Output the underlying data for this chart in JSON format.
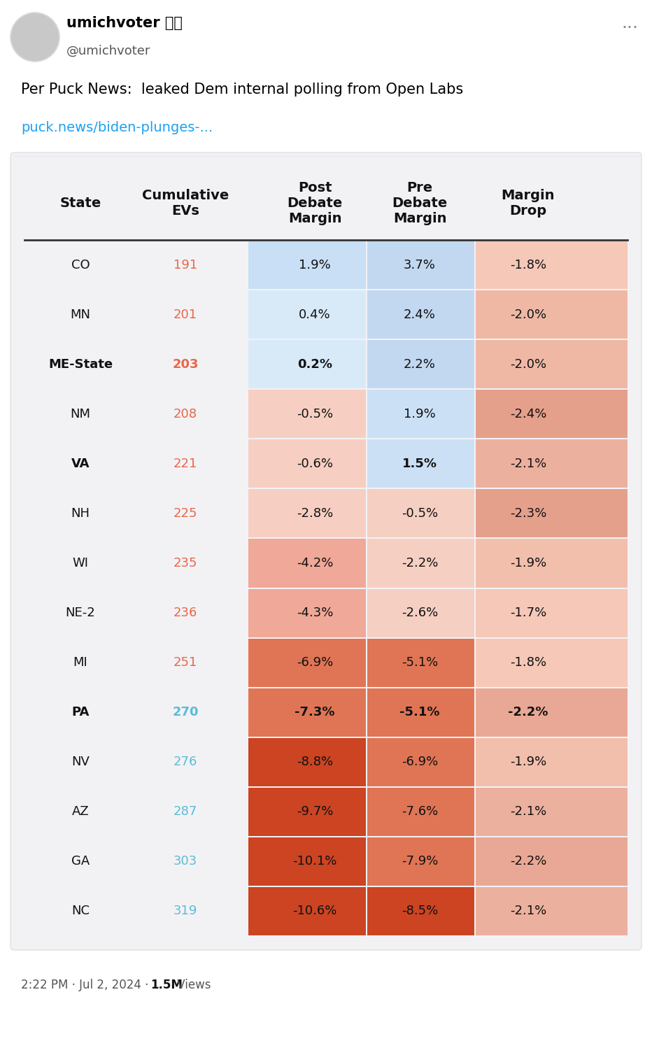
{
  "tweet_user": "umichvoter 🏳️‍🌈",
  "tweet_handle": "@umichvoter",
  "tweet_text": "Per Puck News:  leaked Dem internal polling from Open Labs",
  "tweet_link": "puck.news/biden-plunges-...",
  "tweet_time": "2:22 PM · Jul 2, 2024 · ",
  "tweet_views": "1.5M",
  "tweet_views_suffix": " Views",
  "bg_color": "#ffffff",
  "table_bg": "#f0f0f0",
  "header_cols": [
    "State",
    "Cumulative\nEVs",
    "Post\nDebate\nMargin",
    "Pre\nDebate\nMargin",
    "Margin\nDrop"
  ],
  "rows": [
    {
      "state": "CO",
      "bold_state": false,
      "ev": 191,
      "ev_bold": false,
      "ev_color": "orange_red",
      "post": "1.9%",
      "post_bold": false,
      "pre": "3.7%",
      "pre_bold": false,
      "drop": "-1.8%",
      "drop_bold": false
    },
    {
      "state": "MN",
      "bold_state": false,
      "ev": 201,
      "ev_bold": false,
      "ev_color": "orange_red",
      "post": "0.4%",
      "post_bold": false,
      "pre": "2.4%",
      "pre_bold": false,
      "drop": "-2.0%",
      "drop_bold": false
    },
    {
      "state": "ME-State",
      "bold_state": true,
      "ev": 203,
      "ev_bold": true,
      "ev_color": "orange_red",
      "post": "0.2%",
      "post_bold": true,
      "pre": "2.2%",
      "pre_bold": false,
      "drop": "-2.0%",
      "drop_bold": false
    },
    {
      "state": "NM",
      "bold_state": false,
      "ev": 208,
      "ev_bold": false,
      "ev_color": "orange_red",
      "post": "-0.5%",
      "post_bold": false,
      "pre": "1.9%",
      "pre_bold": false,
      "drop": "-2.4%",
      "drop_bold": false
    },
    {
      "state": "VA",
      "bold_state": true,
      "ev": 221,
      "ev_bold": false,
      "ev_color": "orange_red",
      "post": "-0.6%",
      "post_bold": false,
      "pre": "1.5%",
      "pre_bold": true,
      "drop": "-2.1%",
      "drop_bold": false
    },
    {
      "state": "NH",
      "bold_state": false,
      "ev": 225,
      "ev_bold": false,
      "ev_color": "orange_red",
      "post": "-2.8%",
      "post_bold": false,
      "pre": "-0.5%",
      "pre_bold": false,
      "drop": "-2.3%",
      "drop_bold": false
    },
    {
      "state": "WI",
      "bold_state": false,
      "ev": 235,
      "ev_bold": false,
      "ev_color": "orange_red",
      "post": "-4.2%",
      "post_bold": false,
      "pre": "-2.2%",
      "pre_bold": false,
      "drop": "-1.9%",
      "drop_bold": false
    },
    {
      "state": "NE-2",
      "bold_state": false,
      "ev": 236,
      "ev_bold": false,
      "ev_color": "orange_red",
      "post": "-4.3%",
      "post_bold": false,
      "pre": "-2.6%",
      "pre_bold": false,
      "drop": "-1.7%",
      "drop_bold": false
    },
    {
      "state": "MI",
      "bold_state": false,
      "ev": 251,
      "ev_bold": false,
      "ev_color": "orange_red",
      "post": "-6.9%",
      "post_bold": false,
      "pre": "-5.1%",
      "pre_bold": false,
      "drop": "-1.8%",
      "drop_bold": false
    },
    {
      "state": "PA",
      "bold_state": true,
      "ev": 270,
      "ev_bold": false,
      "ev_color": "sky_blue",
      "post": "-7.3%",
      "post_bold": true,
      "pre": "-5.1%",
      "pre_bold": true,
      "drop": "-2.2%",
      "drop_bold": true
    },
    {
      "state": "NV",
      "bold_state": false,
      "ev": 276,
      "ev_bold": false,
      "ev_color": "sky_blue",
      "post": "-8.8%",
      "post_bold": false,
      "pre": "-6.9%",
      "pre_bold": false,
      "drop": "-1.9%",
      "drop_bold": false
    },
    {
      "state": "AZ",
      "bold_state": false,
      "ev": 287,
      "ev_bold": false,
      "ev_color": "sky_blue",
      "post": "-9.7%",
      "post_bold": false,
      "pre": "-7.6%",
      "pre_bold": false,
      "drop": "-2.1%",
      "drop_bold": false
    },
    {
      "state": "GA",
      "bold_state": false,
      "ev": 303,
      "ev_bold": false,
      "ev_color": "sky_blue",
      "post": "-10.1%",
      "post_bold": false,
      "pre": "-7.9%",
      "pre_bold": false,
      "drop": "-2.2%",
      "drop_bold": false
    },
    {
      "state": "NC",
      "bold_state": false,
      "ev": 319,
      "ev_bold": false,
      "ev_color": "sky_blue",
      "post": "-10.6%",
      "post_bold": false,
      "pre": "-8.5%",
      "pre_bold": false,
      "drop": "-2.1%",
      "drop_bold": false
    }
  ],
  "post_values": [
    1.9,
    0.4,
    0.2,
    -0.5,
    -0.6,
    -2.8,
    -4.2,
    -4.3,
    -6.9,
    -7.3,
    -8.8,
    -9.7,
    -10.1,
    -10.6
  ],
  "pre_values": [
    3.7,
    2.4,
    2.2,
    1.9,
    1.5,
    -0.5,
    -2.2,
    -2.6,
    -5.1,
    -5.1,
    -6.9,
    -7.6,
    -7.9,
    -8.5
  ],
  "drop_values": [
    -1.8,
    -2.0,
    -2.0,
    -2.4,
    -2.1,
    -2.3,
    -1.9,
    -1.7,
    -1.8,
    -2.2,
    -1.9,
    -2.1,
    -2.2,
    -2.1
  ],
  "orange_red_color": "#e8674a",
  "sky_blue_color": "#5bbcd6",
  "link_color": "#1da1f2",
  "cell_post_blue_light": "#d6e4f0",
  "cell_pre_blue_light": "#c8dff0",
  "cell_drop_salmon": "#f0c0b0",
  "cell_post_orange_med": "#e8a090",
  "cell_post_orange_dark": "#d95f3b",
  "cell_pre_orange_med": "#e8a090",
  "cell_pre_orange_dark": "#d95f3b"
}
